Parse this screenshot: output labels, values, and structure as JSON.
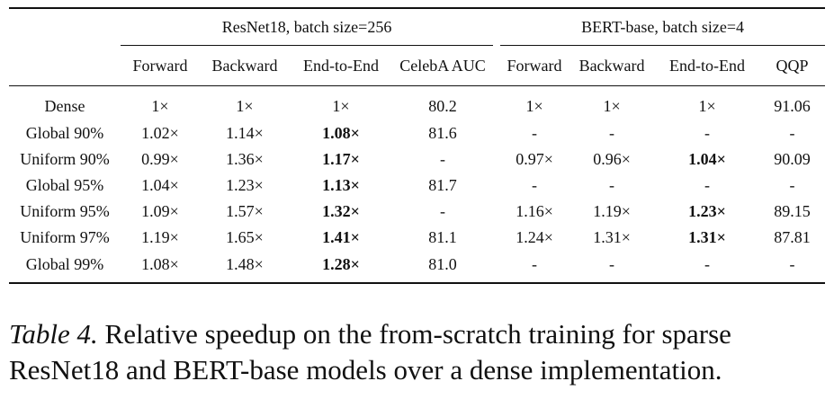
{
  "table": {
    "groups": [
      {
        "label": "ResNet18, batch size=256"
      },
      {
        "label": "BERT-base, batch size=4"
      }
    ],
    "columns": [
      "Forward",
      "Backward",
      "End-to-End",
      "CelebA AUC",
      "Forward",
      "Backward",
      "End-to-End",
      "QQP"
    ],
    "rows": [
      {
        "name": "Dense",
        "cells": [
          "1×",
          "1×",
          "1×",
          "80.2",
          "1×",
          "1×",
          "1×",
          "91.06"
        ]
      },
      {
        "name": "Global 90%",
        "cells": [
          "1.02×",
          "1.14×",
          "1.08×",
          "81.6",
          "-",
          "-",
          "-",
          "-"
        ]
      },
      {
        "name": "Uniform 90%",
        "cells": [
          "0.99×",
          "1.36×",
          "1.17×",
          "-",
          "0.97×",
          "0.96×",
          "1.04×",
          "90.09"
        ]
      },
      {
        "name": "Global 95%",
        "cells": [
          "1.04×",
          "1.23×",
          "1.13×",
          "81.7",
          "-",
          "-",
          "-",
          "-"
        ]
      },
      {
        "name": "Uniform 95%",
        "cells": [
          "1.09×",
          "1.57×",
          "1.32×",
          "-",
          "1.16×",
          "1.19×",
          "1.23×",
          "89.15"
        ]
      },
      {
        "name": "Uniform 97%",
        "cells": [
          "1.19×",
          "1.65×",
          "1.41×",
          "81.1",
          "1.24×",
          "1.31×",
          "1.31×",
          "87.81"
        ]
      },
      {
        "name": "Global 99%",
        "cells": [
          "1.08×",
          "1.48×",
          "1.28×",
          "81.0",
          "-",
          "-",
          "-",
          "-"
        ]
      }
    ]
  },
  "caption": {
    "label": "Table 4.",
    "text": " Relative speedup on the from-scratch training for sparse ResNet18 and BERT-base models over a dense implementation."
  }
}
